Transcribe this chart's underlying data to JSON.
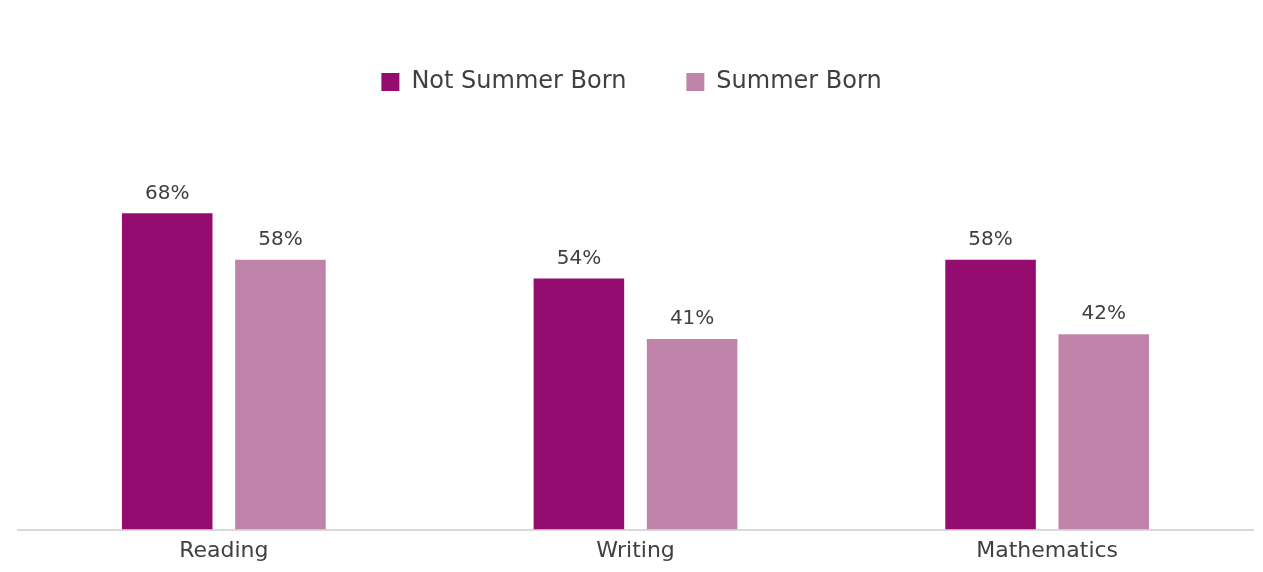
{
  "chart_data": {
    "type": "bar",
    "categories": [
      "Reading",
      "Writing",
      "Mathematics"
    ],
    "series": [
      {
        "name": "Not Summer Born",
        "color": "#940c6f",
        "values": [
          68,
          54,
          58
        ],
        "value_labels": [
          "68%",
          "54%",
          "58%"
        ]
      },
      {
        "name": "Summer Born",
        "color": "#c084aa",
        "values": [
          58,
          41,
          42
        ],
        "value_labels": [
          "58%",
          "41%",
          "42%"
        ]
      }
    ],
    "grid": false,
    "legend": "top"
  }
}
